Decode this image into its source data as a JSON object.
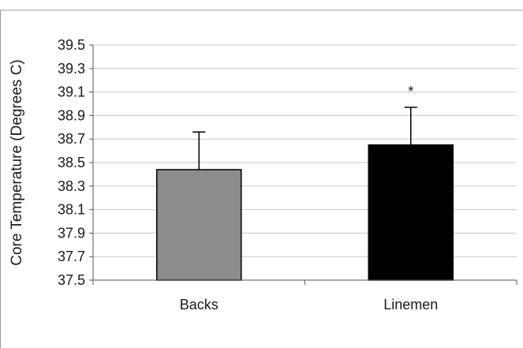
{
  "chart_data": {
    "type": "bar",
    "title": "",
    "xlabel": "",
    "ylabel": "Core Temperature (Degrees C)",
    "ylim": [
      37.5,
      39.5
    ],
    "yticks": [
      "37.5",
      "37.7",
      "37.9",
      "38.1",
      "38.3",
      "38.5",
      "38.7",
      "38.9",
      "39.1",
      "39.3",
      "39.5"
    ],
    "categories": [
      "Backs",
      "Linemen"
    ],
    "values": [
      38.44,
      38.65
    ],
    "error_upper": [
      38.76,
      38.97
    ],
    "annotations": [
      "",
      "*"
    ],
    "bar_colors": [
      "#8c8c8c",
      "#000000"
    ],
    "grid": true,
    "legend": "none"
  }
}
